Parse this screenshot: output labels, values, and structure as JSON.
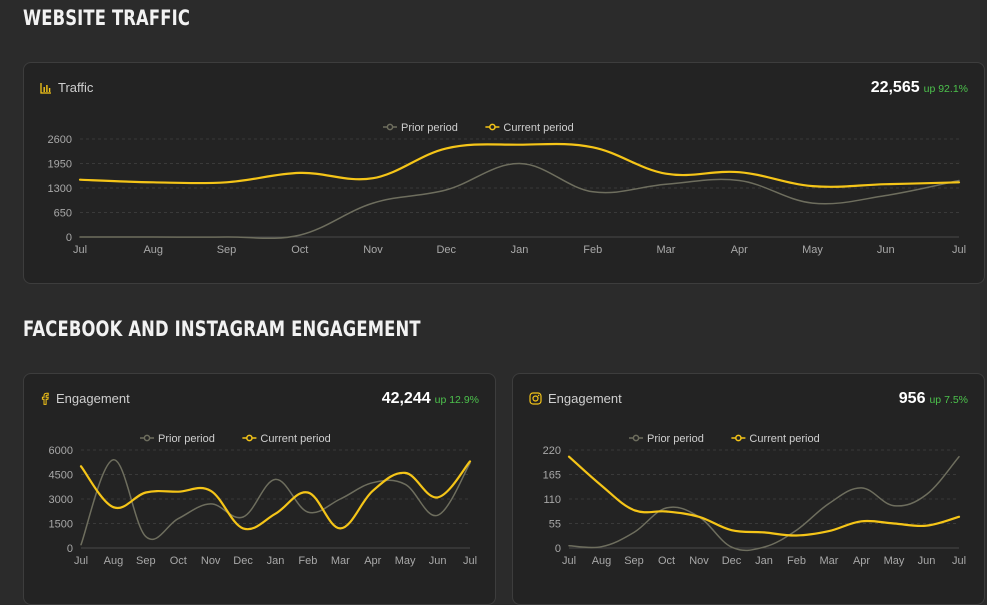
{
  "sections": {
    "traffic_title": "WEBSITE TRAFFIC",
    "engagement_title": "FACEBOOK AND INSTAGRAM ENGAGEMENT"
  },
  "colors": {
    "current": "#f5c518",
    "prior": "#6e6e5e",
    "grid": "#3a3a3a",
    "tick": "#a8a8a8",
    "up": "#4cc14c"
  },
  "icons": {
    "traffic": "bar-chart-icon",
    "facebook": "facebook-icon",
    "instagram": "instagram-icon"
  },
  "traffic_card": {
    "title": "Traffic",
    "value": "22,565",
    "change": "up 92.1%"
  },
  "facebook_card": {
    "title": "Engagement",
    "value": "42,244",
    "change": "up 12.9%"
  },
  "instagram_card": {
    "title": "Engagement",
    "value": "956",
    "change": "up 7.5%"
  },
  "chart_data": [
    {
      "id": "traffic",
      "type": "line",
      "x": [
        "Jul",
        "Aug",
        "Sep",
        "Oct",
        "Nov",
        "Dec",
        "Jan",
        "Feb",
        "Mar",
        "Apr",
        "May",
        "Jun",
        "Jul"
      ],
      "yticks": [
        0,
        650,
        1300,
        1950,
        2600
      ],
      "ylim": [
        0,
        2600
      ],
      "grid": true,
      "legend": "top-center",
      "series": [
        {
          "name": "Prior period",
          "role": "prior",
          "values": [
            0,
            0,
            0,
            50,
            900,
            1250,
            1950,
            1200,
            1400,
            1500,
            900,
            1100,
            1500
          ]
        },
        {
          "name": "Current period",
          "role": "current",
          "values": [
            1520,
            1450,
            1450,
            1700,
            1560,
            2350,
            2450,
            2380,
            1680,
            1720,
            1350,
            1400,
            1450
          ]
        }
      ]
    },
    {
      "id": "facebook",
      "type": "line",
      "x": [
        "Jul",
        "Aug",
        "Sep",
        "Oct",
        "Nov",
        "Dec",
        "Jan",
        "Feb",
        "Mar",
        "Apr",
        "May",
        "Jun",
        "Jul"
      ],
      "yticks": [
        0,
        1500,
        3000,
        4500,
        6000
      ],
      "ylim": [
        0,
        6000
      ],
      "grid": true,
      "legend": "top-center",
      "series": [
        {
          "name": "Prior period",
          "role": "prior",
          "values": [
            200,
            5400,
            700,
            1800,
            2700,
            1900,
            4200,
            2200,
            3000,
            4000,
            3900,
            2000,
            5200
          ]
        },
        {
          "name": "Current period",
          "role": "current",
          "values": [
            5000,
            2500,
            3400,
            3450,
            3500,
            1200,
            2100,
            3400,
            1200,
            3500,
            4600,
            3100,
            5300
          ]
        }
      ]
    },
    {
      "id": "instagram",
      "type": "line",
      "x": [
        "Jul",
        "Aug",
        "Sep",
        "Oct",
        "Nov",
        "Dec",
        "Jan",
        "Feb",
        "Mar",
        "Apr",
        "May",
        "Jun",
        "Jul"
      ],
      "yticks": [
        0,
        55,
        110,
        165,
        220
      ],
      "ylim": [
        0,
        220
      ],
      "grid": true,
      "legend": "top-center",
      "series": [
        {
          "name": "Prior period",
          "role": "prior",
          "values": [
            5,
            3,
            35,
            90,
            70,
            2,
            2,
            40,
            100,
            135,
            95,
            120,
            205
          ]
        },
        {
          "name": "Current period",
          "role": "current",
          "values": [
            205,
            140,
            85,
            82,
            70,
            40,
            35,
            28,
            38,
            60,
            55,
            50,
            70
          ]
        }
      ]
    }
  ]
}
